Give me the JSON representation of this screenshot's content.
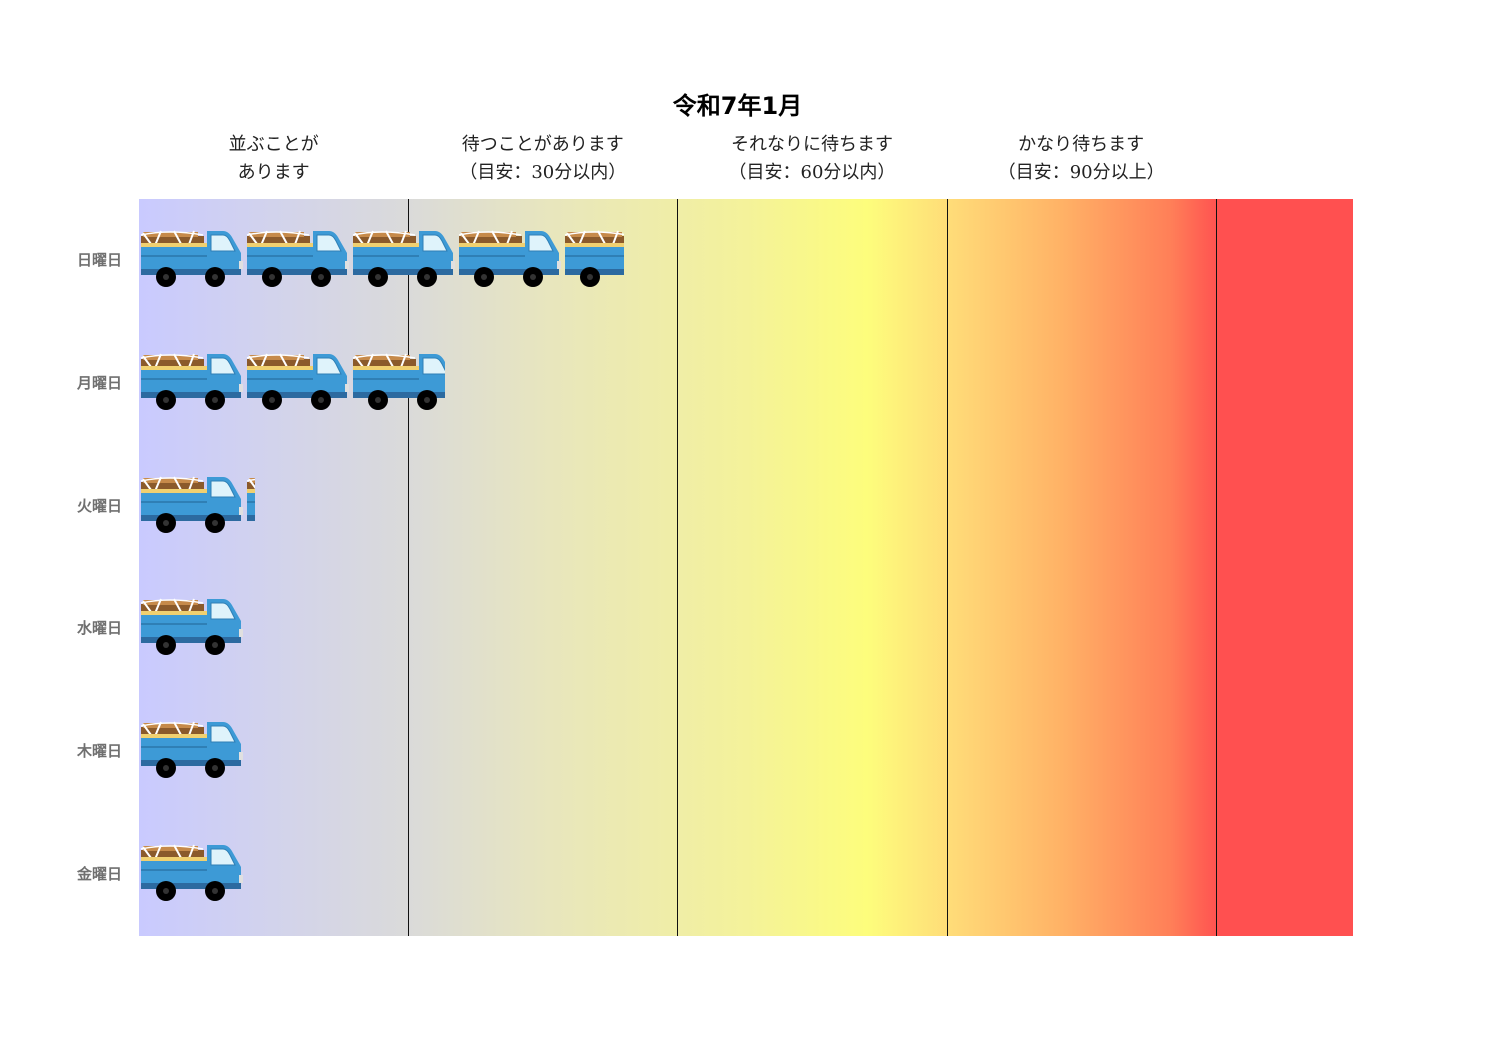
{
  "chart_data": {
    "type": "bar",
    "title": "令和7年1月",
    "categories": [
      "日曜日",
      "月曜日",
      "火曜日",
      "水曜日",
      "木曜日",
      "金曜日"
    ],
    "values": [
      4.6,
      2.9,
      1.1,
      1.0,
      1.0,
      1.0
    ],
    "xlim": [
      0,
      11.5
    ],
    "bands": [
      {
        "lines": [
          "並ぶことが",
          "あります"
        ],
        "start": 0,
        "end": 2.55
      },
      {
        "lines": [
          "待つことがあります",
          "（目安：30分以内）"
        ],
        "start": 2.55,
        "end": 5.1
      },
      {
        "lines": [
          "それなりに待ちます",
          "（目安：60分以内）"
        ],
        "start": 5.1,
        "end": 7.65
      },
      {
        "lines": [
          "かなり待ちます",
          "（目安：90分以上）"
        ],
        "start": 7.65,
        "end": 10.2
      }
    ],
    "dividers": [
      2.55,
      5.1,
      7.65,
      10.2
    ],
    "mark_icon": "dump-truck-icon",
    "colors": {
      "low": "#c9caff",
      "mid": "#fdfd7c",
      "high": "#ff5050",
      "divider": "#111111",
      "truck_body": "#3d9ad6",
      "truck_cargo": "#8b5a2b"
    },
    "grid": false,
    "legend": "none"
  }
}
